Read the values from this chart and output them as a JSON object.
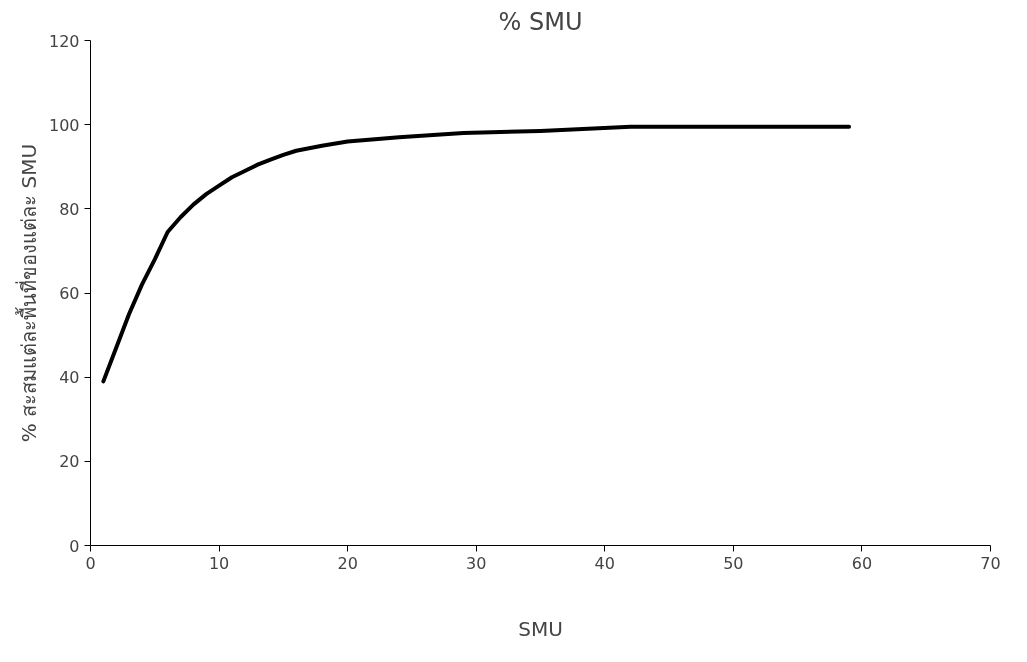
{
  "chart_data": {
    "type": "line",
    "title": "% SMU",
    "xlabel": "SMU",
    "ylabel": "% สะสมแต่ละพื้นที่ของแต่ละ SMU",
    "x": [
      1,
      2,
      3,
      4,
      5,
      6,
      7,
      8,
      9,
      10,
      11,
      12,
      13,
      14,
      15,
      16,
      18,
      20,
      24,
      29,
      35,
      42,
      59
    ],
    "series": [
      {
        "color": "#000000",
        "values": [
          39,
          47,
          55,
          62,
          68,
          74.5,
          78,
          81,
          83.5,
          85.5,
          87.5,
          89,
          90.5,
          91.7,
          92.8,
          93.8,
          95,
          96,
          97,
          98,
          98.5,
          99.5,
          99.5
        ]
      }
    ],
    "xlim": [
      0,
      70
    ],
    "xticks": [
      0,
      10,
      20,
      30,
      40,
      50,
      60,
      70
    ],
    "ylim": [
      0,
      120
    ],
    "yticks": [
      0,
      20,
      40,
      60,
      80,
      100,
      120
    ],
    "grid": false,
    "marker": "none",
    "line_style": "solid"
  }
}
